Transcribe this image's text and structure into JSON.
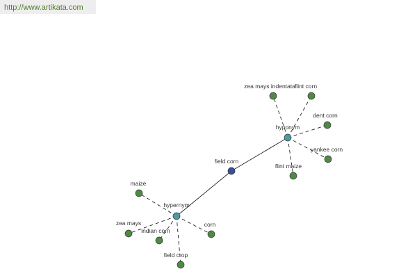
{
  "header": {
    "url": "http://www.artikata.com"
  },
  "nodes": [
    {
      "label": "field corn"
    },
    {
      "label": "hypernym"
    },
    {
      "label": "hyponym"
    },
    {
      "label": "maize"
    },
    {
      "label": "zea mays"
    },
    {
      "label": "indian corn"
    },
    {
      "label": "field crop"
    },
    {
      "label": "corn"
    },
    {
      "label": "zea mays indentata"
    },
    {
      "label": "flint corn"
    },
    {
      "label": "dent corn"
    },
    {
      "label": "yankee corn"
    },
    {
      "label": "flint maize"
    }
  ]
}
